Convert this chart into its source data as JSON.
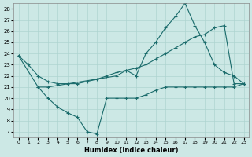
{
  "xlabel": "Humidex (Indice chaleur)",
  "ylabel": "",
  "bg_color": "#cce8e5",
  "grid_color": "#aed4d0",
  "line_color": "#1a6b6b",
  "xlim": [
    -0.5,
    23.5
  ],
  "ylim": [
    16.5,
    28.5
  ],
  "yticks": [
    17,
    18,
    19,
    20,
    21,
    22,
    23,
    24,
    25,
    26,
    27,
    28
  ],
  "xticks": [
    0,
    1,
    2,
    3,
    4,
    5,
    6,
    7,
    8,
    9,
    10,
    11,
    12,
    13,
    14,
    15,
    16,
    17,
    18,
    19,
    20,
    21,
    22,
    23
  ],
  "lines": [
    {
      "x": [
        0,
        1,
        2,
        3,
        4,
        5,
        6,
        7,
        8,
        9,
        10,
        11,
        12,
        13,
        14,
        15,
        16,
        17,
        18,
        19,
        20,
        21,
        22,
        23
      ],
      "y": [
        23.8,
        23.0,
        22.0,
        21.5,
        21.3,
        21.3,
        21.3,
        21.5,
        21.7,
        22.0,
        22.3,
        22.5,
        22.7,
        23.0,
        23.5,
        24.0,
        24.5,
        25.0,
        25.5,
        25.7,
        26.3,
        26.5,
        21.3,
        21.3
      ],
      "marker": "+"
    },
    {
      "x": [
        0,
        2,
        3,
        10,
        11,
        12,
        13,
        14,
        15,
        16,
        17,
        18,
        19,
        20,
        21,
        22,
        23
      ],
      "y": [
        23.8,
        21.0,
        21.0,
        22.0,
        22.5,
        22.0,
        24.0,
        25.0,
        26.3,
        27.3,
        28.5,
        26.5,
        25.0,
        23.0,
        22.3,
        22.0,
        21.3
      ],
      "marker": "+"
    },
    {
      "x": [
        2,
        3,
        4,
        5,
        6,
        7,
        8,
        9,
        10,
        11,
        12,
        13,
        14,
        15,
        16,
        17,
        18,
        19,
        20,
        21,
        22,
        23
      ],
      "y": [
        21.0,
        20.0,
        19.2,
        18.7,
        18.3,
        17.0,
        16.8,
        20.0,
        20.0,
        20.0,
        20.0,
        20.3,
        20.7,
        21.0,
        21.0,
        21.0,
        21.0,
        21.0,
        21.0,
        21.0,
        21.0,
        21.3
      ],
      "marker": "+"
    }
  ]
}
